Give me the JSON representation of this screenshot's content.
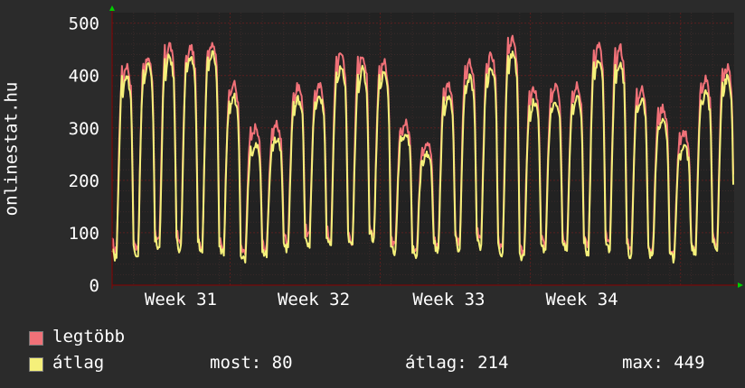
{
  "chart_data": {
    "type": "line",
    "ylabel": "onlinestat.hu",
    "ylim": [
      0,
      520
    ],
    "yticks": [
      "0",
      "100",
      "200",
      "300",
      "400",
      "500"
    ],
    "xticks": [
      "Week 31",
      "Week 32",
      "Week 33",
      "Week 34"
    ],
    "grid": true,
    "colors": {
      "background": "#2b2b2b",
      "plot": "#222222",
      "grid_major": "#5a1f1f",
      "grid_minor": "#3a2a2a",
      "axis": "#8a0000",
      "arrow": "#00cc00"
    },
    "days": 29,
    "series": [
      {
        "name": "legtöbb",
        "color": "#f07178",
        "peaks": [
          420,
          435,
          460,
          455,
          465,
          385,
          300,
          305,
          380,
          380,
          445,
          440,
          425,
          310,
          275,
          385,
          425,
          440,
          475,
          375,
          380,
          385,
          460,
          455,
          375,
          340,
          290,
          395,
          415
        ],
        "troughs": [
          65,
          70,
          85,
          80,
          75,
          70,
          60,
          70,
          85,
          95,
          90,
          85,
          100,
          75,
          70,
          75,
          80,
          90,
          70,
          60,
          75,
          80,
          75,
          80,
          70,
          65,
          60,
          70,
          80
        ]
      },
      {
        "name": "átlag",
        "color": "#f5f07a",
        "peaks": [
          400,
          420,
          435,
          435,
          445,
          360,
          270,
          280,
          355,
          360,
          415,
          410,
          405,
          290,
          250,
          360,
          395,
          415,
          445,
          350,
          350,
          360,
          435,
          425,
          355,
          315,
          265,
          370,
          395
        ],
        "troughs": [
          55,
          60,
          70,
          70,
          65,
          60,
          50,
          60,
          70,
          80,
          75,
          75,
          90,
          65,
          60,
          65,
          70,
          75,
          60,
          50,
          65,
          70,
          65,
          70,
          60,
          55,
          50,
          60,
          70
        ]
      }
    ]
  },
  "legend": {
    "items": [
      {
        "label": "legtöbb",
        "color": "#f07178"
      },
      {
        "label": "átlag",
        "color": "#f5f07a"
      }
    ]
  },
  "stats": {
    "most": "most: 80",
    "atlag": "átlag: 214",
    "max": "max: 449"
  }
}
